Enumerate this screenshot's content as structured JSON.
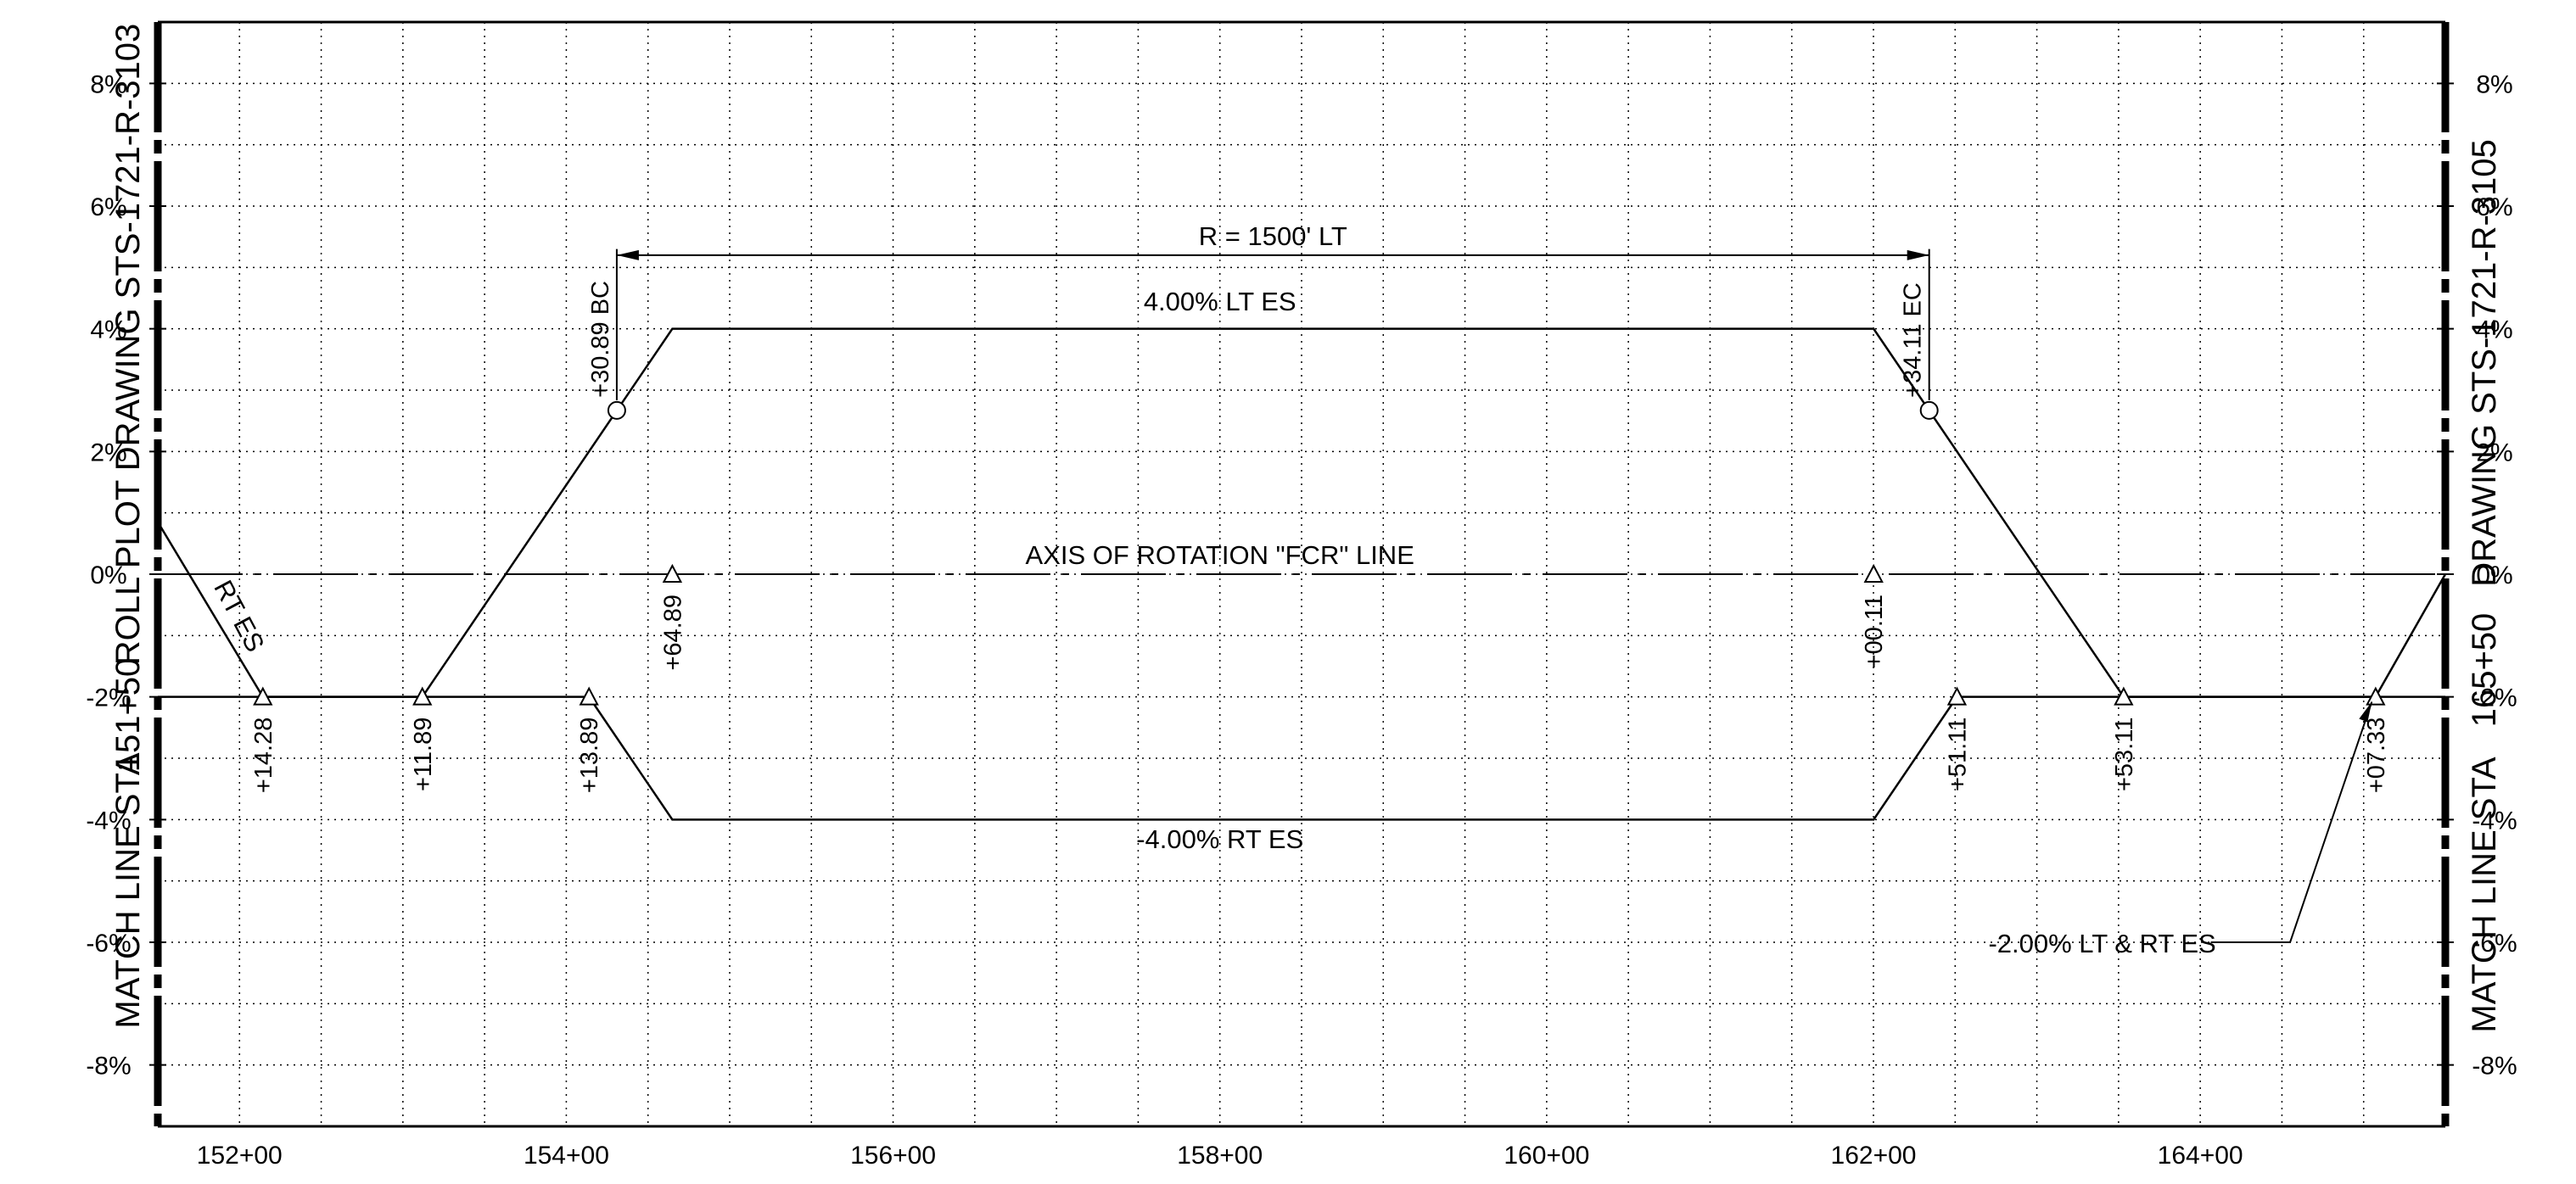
{
  "drawing": {
    "left_match_line": "MATCH LINE STA",
    "left_match_station": "151+50",
    "left_roll_plot": "ROLL PLOT DRAWING STS-1721-R-3103",
    "right_match_line": "MATCH LINE STA",
    "right_match_station": "165+50",
    "right_drawing": "DRAWING STS-1721-R-3105"
  },
  "chart_data": {
    "type": "line",
    "xlim": [
      151.5,
      165.5
    ],
    "ylim": [
      -9,
      9
    ],
    "grid": true,
    "x_ticks": [
      {
        "value": 152,
        "label": "152+00"
      },
      {
        "value": 154,
        "label": "154+00"
      },
      {
        "value": 156,
        "label": "156+00"
      },
      {
        "value": 158,
        "label": "158+00"
      },
      {
        "value": 160,
        "label": "160+00"
      },
      {
        "value": 162,
        "label": "162+00"
      },
      {
        "value": 164,
        "label": "164+00"
      }
    ],
    "y_ticks": [
      {
        "value": 8,
        "label": "8%"
      },
      {
        "value": 6,
        "label": "6%"
      },
      {
        "value": 4,
        "label": "4%"
      },
      {
        "value": 2,
        "label": "2%"
      },
      {
        "value": 0,
        "label": "0%"
      },
      {
        "value": -2,
        "label": "-2%"
      },
      {
        "value": -4,
        "label": "-4%"
      },
      {
        "value": -6,
        "label": "-6%"
      },
      {
        "value": -8,
        "label": "-8%"
      }
    ],
    "series": [
      {
        "name": "LT ES",
        "points": [
          [
            151.5,
            -2
          ],
          [
            153.1189,
            -2
          ],
          [
            154.6489,
            4
          ],
          [
            162.0011,
            4
          ],
          [
            163.5311,
            -2
          ],
          [
            165.0733,
            -2
          ],
          [
            165.5,
            0
          ]
        ]
      },
      {
        "name": "RT ES",
        "points": [
          [
            151.5,
            0.85
          ],
          [
            152.1428,
            -2
          ],
          [
            154.1389,
            -2
          ],
          [
            154.6489,
            -4
          ],
          [
            162.0011,
            -4
          ],
          [
            162.5111,
            -2
          ],
          [
            165.5,
            -2
          ]
        ]
      }
    ],
    "axis_of_rotation": {
      "y": 0,
      "label": "AXIS OF ROTATION \"FCR\" LINE"
    },
    "curve": {
      "label": "R = 1500' LT",
      "bc": {
        "x": 154.3089,
        "y": 2.67,
        "label": "+30.89 BC"
      },
      "ec": {
        "x": 162.3411,
        "y": 2.67,
        "label": "+34.11 EC"
      }
    },
    "markers": [
      {
        "x": 152.1428,
        "y": -2,
        "label": "+14.28"
      },
      {
        "x": 153.1189,
        "y": -2,
        "label": "+11.89"
      },
      {
        "x": 154.1389,
        "y": -2,
        "label": "+13.89"
      },
      {
        "x": 154.6489,
        "y": 0,
        "label": "+64.89"
      },
      {
        "x": 162.0011,
        "y": 0,
        "label": "+00.11"
      },
      {
        "x": 162.5111,
        "y": -2,
        "label": "+51.11"
      },
      {
        "x": 163.5311,
        "y": -2,
        "label": "+53.11"
      },
      {
        "x": 165.0733,
        "y": -2,
        "label": "+07.33"
      }
    ],
    "annotations": [
      {
        "text": "4.00% LT ES",
        "x": 158.0,
        "y": 4.3
      },
      {
        "text": "-4.00% RT ES",
        "x": 158.0,
        "y": -4.3
      },
      {
        "text": "RT ES",
        "x": 151.95,
        "y": -0.75
      },
      {
        "text": "-2.00% LT & RT ES",
        "x": 163.4,
        "y": -6.0
      }
    ]
  }
}
